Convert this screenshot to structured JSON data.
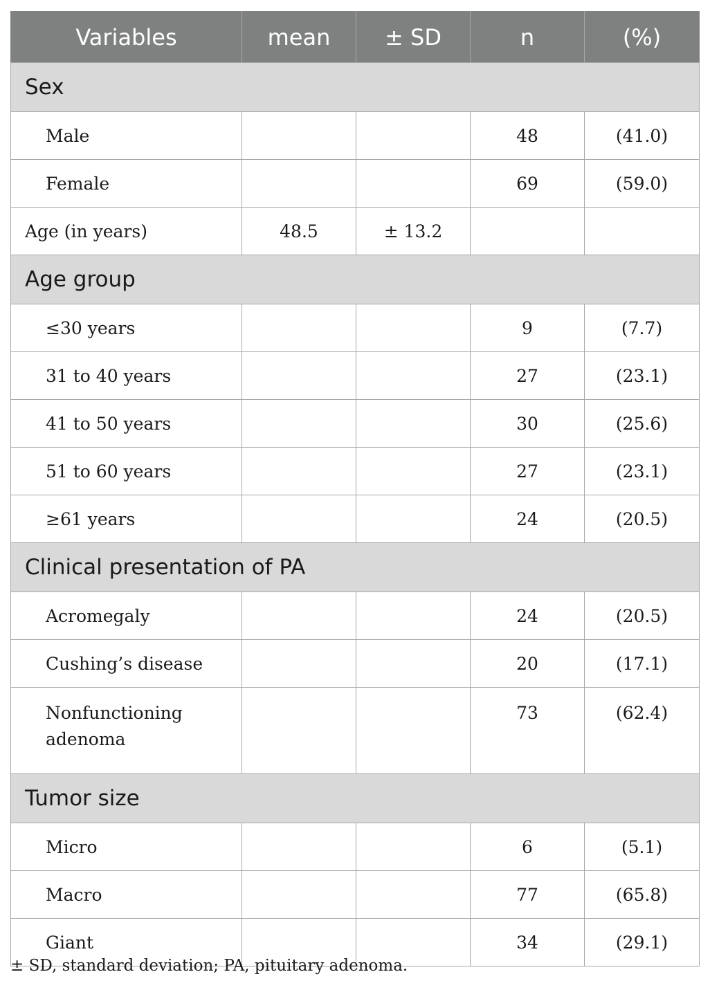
{
  "headers": [
    "Variables",
    "mean",
    "± SD",
    "n",
    "(%)"
  ],
  "sections": {
    "sex": "Sex",
    "age_group": "Age group",
    "clinical": "Clinical presentation of PA",
    "tumor": "Tumor size"
  },
  "rows": {
    "male": {
      "label": "Male",
      "n": "48",
      "pct": "(41.0)"
    },
    "female": {
      "label": "Female",
      "n": "69",
      "pct": "(59.0)"
    },
    "age": {
      "label": "Age (in years)",
      "mean": "48.5",
      "sd": "± 13.2"
    },
    "le30": {
      "label": "≤30 years",
      "n": "9",
      "pct": "(7.7)"
    },
    "a31_40": {
      "label": "31 to 40 years",
      "n": "27",
      "pct": "(23.1)"
    },
    "a41_50": {
      "label": "41 to 50 years",
      "n": "30",
      "pct": "(25.6)"
    },
    "a51_60": {
      "label": "51 to 60 years",
      "n": "27",
      "pct": "(23.1)"
    },
    "ge61": {
      "label": "≥61 years",
      "n": "24",
      "pct": "(20.5)"
    },
    "acromegaly": {
      "label": "Acromegaly",
      "n": "24",
      "pct": "(20.5)"
    },
    "cushing": {
      "label": "Cushing’s disease",
      "n": "20",
      "pct": "(17.1)"
    },
    "nonfunctioning": {
      "label_line1": "Nonfunctioning",
      "label_line2": "adenoma",
      "n": "73",
      "pct": "(62.4)"
    },
    "micro": {
      "label": "Micro",
      "n": "6",
      "pct": "(5.1)"
    },
    "macro": {
      "label": "Macro",
      "n": "77",
      "pct": "(65.8)"
    },
    "giant": {
      "label": "Giant",
      "n": "34",
      "pct": "(29.1)"
    }
  },
  "footnote": "± SD, standard deviation; PA, pituitary adenoma."
}
